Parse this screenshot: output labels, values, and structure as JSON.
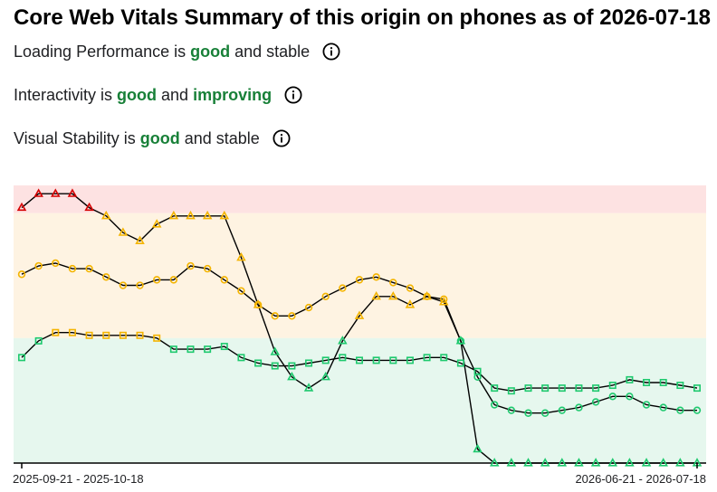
{
  "title": "Core Web Vitals Summary of this origin on phones as of 2026-07-18",
  "status_rows": [
    {
      "prefix": "Loading Performance is ",
      "assessment": "good",
      "middle": " and ",
      "trend": "stable",
      "trend_highlight": false,
      "info_icon": "info-icon"
    },
    {
      "prefix": "Interactivity is ",
      "assessment": "good",
      "middle": " and ",
      "trend": "improving",
      "trend_highlight": true,
      "info_icon": "info-icon"
    },
    {
      "prefix": "Visual Stability is ",
      "assessment": "good",
      "middle": " and ",
      "trend": "stable",
      "trend_highlight": false,
      "info_icon": "info-icon"
    }
  ],
  "colors": {
    "good": "#188038",
    "band_good": "#e6f7ee",
    "band_needs_improvement": "#fef3e2",
    "band_poor": "#fde2e2",
    "marker_good": "#1ec96e",
    "marker_needs_improvement": "#f4b400",
    "marker_poor": "#d50000",
    "line": "#000000"
  },
  "chart_data": {
    "type": "line",
    "x": [
      "2025-09-21 - 2025-10-18",
      "",
      "",
      "",
      "",
      "",
      "",
      "",
      "",
      "",
      "",
      "",
      "",
      "",
      "",
      "",
      "",
      "",
      "",
      "",
      "",
      "",
      "",
      "",
      "",
      "",
      "",
      "",
      "",
      "",
      "",
      "",
      "",
      "",
      "",
      "",
      "",
      "",
      "",
      "",
      "2026-06-21 - 2026-07-18"
    ],
    "tick_labels": [
      "2025-09-21 - 2025-10-18",
      "2026-06-21 - 2026-07-18"
    ],
    "ylim": [
      0,
      100
    ],
    "bands": [
      {
        "rating": "poor",
        "from": 90,
        "to": 100
      },
      {
        "rating": "needs-improvement",
        "from": 45,
        "to": 90
      },
      {
        "rating": "good",
        "from": 0,
        "to": 45
      }
    ],
    "series": [
      {
        "marker": "triangle",
        "values": [
          92,
          97,
          97,
          97,
          92,
          89,
          83,
          80,
          86,
          89,
          89,
          89,
          89,
          74,
          57,
          40,
          31,
          27,
          31,
          44,
          53,
          60,
          60,
          57,
          60,
          58,
          44,
          5,
          0,
          0,
          0,
          0,
          0,
          0,
          0,
          0,
          0,
          0,
          0,
          0,
          0
        ]
      },
      {
        "marker": "circle",
        "values": [
          68,
          71,
          72,
          70,
          70,
          67,
          64,
          64,
          66,
          66,
          71,
          70,
          66,
          62,
          57,
          53,
          53,
          56,
          60,
          63,
          66,
          67,
          65,
          63,
          60,
          59,
          44,
          31,
          21,
          19,
          18,
          18,
          19,
          20,
          22,
          24,
          24,
          21,
          20,
          19,
          19
        ]
      },
      {
        "marker": "square",
        "values": [
          38,
          44,
          47,
          47,
          46,
          46,
          46,
          46,
          45,
          41,
          41,
          41,
          42,
          38,
          36,
          35,
          35,
          36,
          37,
          38,
          37,
          37,
          37,
          37,
          38,
          38,
          36,
          33,
          27,
          26,
          27,
          27,
          27,
          27,
          27,
          28,
          30,
          29,
          29,
          28,
          27
        ]
      }
    ]
  }
}
